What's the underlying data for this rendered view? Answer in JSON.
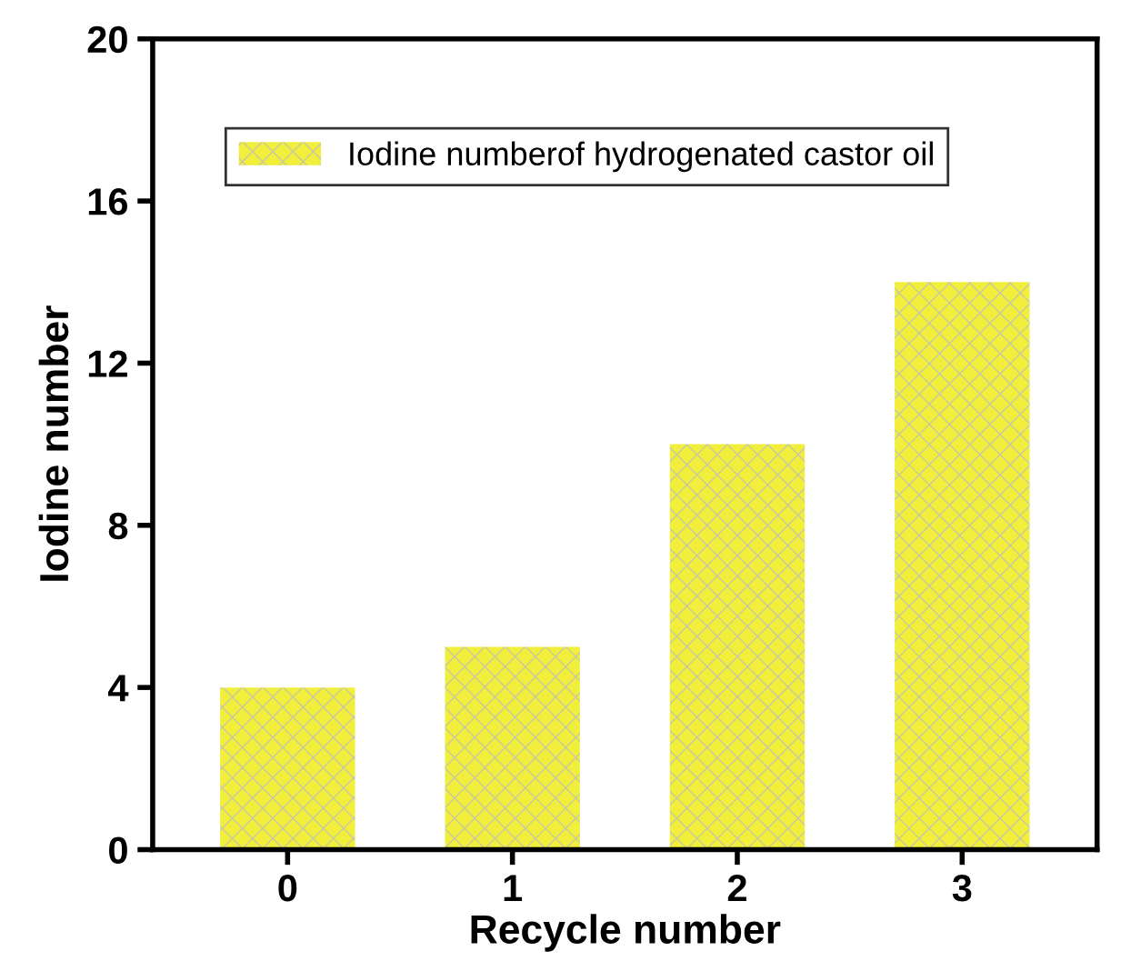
{
  "chart_data": {
    "type": "bar",
    "xlabel": "Recycle number",
    "ylabel": "Iodine number",
    "categories": [
      "0",
      "1",
      "2",
      "3"
    ],
    "series": [
      {
        "name": "Iodine numberof hydrogenated castor oil",
        "color": "#f2ee3c",
        "values": [
          4,
          5,
          10,
          14
        ]
      }
    ],
    "ylim": [
      0,
      20
    ],
    "yticks": [
      0,
      4,
      8,
      12,
      16,
      20
    ],
    "grid": false,
    "legend": "top left"
  }
}
